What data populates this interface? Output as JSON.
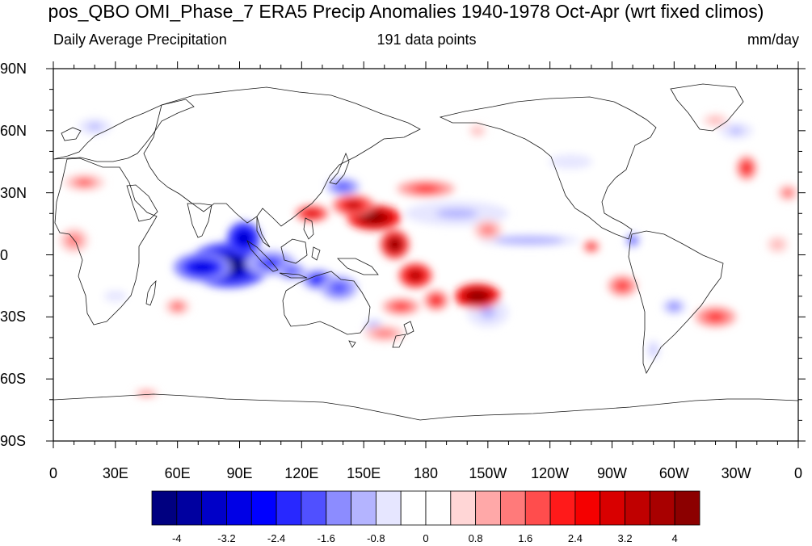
{
  "title": "pos_QBO OMI_Phase_7 ERA5 Precip Anomalies 1940-1978 Oct-Apr (wrt fixed climos)",
  "subtitle_left": "Daily Average Precipitation",
  "subtitle_center": "191 data points",
  "subtitle_right": "mm/day",
  "lat_labels": [
    "90N",
    "60N",
    "30N",
    "0",
    "30S",
    "60S",
    "90S"
  ],
  "lon_labels": [
    "0",
    "30E",
    "60E",
    "90E",
    "120E",
    "150E",
    "180",
    "150W",
    "120W",
    "90W",
    "60W",
    "30W",
    "0"
  ],
  "colorbar": {
    "colors": [
      "#000080",
      "#0000a0",
      "#0000c8",
      "#0000e6",
      "#0000ff",
      "#2828ff",
      "#5050ff",
      "#8c8cff",
      "#b4b4ff",
      "#e6e6ff",
      "#ffffff",
      "#ffffff",
      "#ffd6d6",
      "#ffa8a8",
      "#ff7a7a",
      "#ff4d4d",
      "#ff1a1a",
      "#f50000",
      "#d90000",
      "#c00000",
      "#a80000",
      "#8c0000"
    ],
    "labels": [
      "-4",
      "-3.2",
      "-2.4",
      "-1.6",
      "-0.8",
      "0",
      "0.8",
      "1.6",
      "2.4",
      "3.2",
      "4"
    ]
  },
  "anomalies": [
    {
      "lon": 85,
      "lat": -5,
      "rx": 20,
      "ry": 11,
      "value": -4.4
    },
    {
      "lon": 92,
      "lat": 8,
      "rx": 8,
      "ry": 8,
      "value": -3.6
    },
    {
      "lon": 72,
      "lat": -6,
      "rx": 14,
      "ry": 7,
      "value": -3.0
    },
    {
      "lon": 105,
      "lat": -4,
      "rx": 12,
      "ry": 6,
      "value": -2.2
    },
    {
      "lon": 128,
      "lat": -12,
      "rx": 8,
      "ry": 5,
      "value": -2.6
    },
    {
      "lon": 115,
      "lat": -8,
      "rx": 7,
      "ry": 4,
      "value": -2.0
    },
    {
      "lon": 138,
      "lat": -16,
      "rx": 9,
      "ry": 6,
      "value": -1.8
    },
    {
      "lon": 155,
      "lat": -35,
      "rx": 5,
      "ry": 4,
      "value": -1.2
    },
    {
      "lon": 140,
      "lat": 33,
      "rx": 8,
      "ry": 4,
      "value": -1.8
    },
    {
      "lon": 195,
      "lat": 20,
      "rx": 25,
      "ry": 6,
      "value": -0.9
    },
    {
      "lon": 230,
      "lat": 7,
      "rx": 24,
      "ry": 3,
      "value": -1.2
    },
    {
      "lon": 280,
      "lat": 7,
      "rx": 4,
      "ry": 4,
      "value": -1.7
    },
    {
      "lon": 300,
      "lat": -25,
      "rx": 6,
      "ry": 4,
      "value": -1.5
    },
    {
      "lon": 290,
      "lat": -46,
      "rx": 3,
      "ry": 5,
      "value": -1.0
    },
    {
      "lon": 210,
      "lat": -28,
      "rx": 10,
      "ry": 7,
      "value": -0.9
    },
    {
      "lon": 30,
      "lat": -20,
      "rx": 8,
      "ry": 4,
      "value": -0.8
    },
    {
      "lon": 20,
      "lat": 62,
      "rx": 8,
      "ry": 4,
      "value": -1.0
    },
    {
      "lon": 250,
      "lat": 45,
      "rx": 15,
      "ry": 5,
      "value": -0.8
    },
    {
      "lon": 330,
      "lat": 60,
      "rx": 8,
      "ry": 4,
      "value": -0.9
    },
    {
      "lon": 155,
      "lat": 18,
      "rx": 13,
      "ry": 6,
      "value": 4.6
    },
    {
      "lon": 145,
      "lat": 24,
      "rx": 10,
      "ry": 5,
      "value": 3.2
    },
    {
      "lon": 165,
      "lat": 5,
      "rx": 7,
      "ry": 7,
      "value": 4.0
    },
    {
      "lon": 175,
      "lat": -10,
      "rx": 8,
      "ry": 6,
      "value": 3.6
    },
    {
      "lon": 205,
      "lat": -20,
      "rx": 11,
      "ry": 6,
      "value": 4.6
    },
    {
      "lon": 185,
      "lat": -22,
      "rx": 6,
      "ry": 5,
      "value": 2.6
    },
    {
      "lon": 168,
      "lat": -25,
      "rx": 9,
      "ry": 4,
      "value": 2.0
    },
    {
      "lon": 125,
      "lat": 20,
      "rx": 8,
      "ry": 4,
      "value": 2.8
    },
    {
      "lon": 180,
      "lat": 32,
      "rx": 14,
      "ry": 4,
      "value": 2.2
    },
    {
      "lon": 160,
      "lat": -38,
      "rx": 10,
      "ry": 4,
      "value": 1.4
    },
    {
      "lon": 210,
      "lat": 12,
      "rx": 7,
      "ry": 5,
      "value": 1.4
    },
    {
      "lon": 260,
      "lat": 4,
      "rx": 4,
      "ry": 3,
      "value": 2.4
    },
    {
      "lon": 275,
      "lat": -15,
      "rx": 7,
      "ry": 5,
      "value": 2.0
    },
    {
      "lon": 320,
      "lat": -30,
      "rx": 10,
      "ry": 5,
      "value": 2.2
    },
    {
      "lon": 335,
      "lat": 42,
      "rx": 5,
      "ry": 6,
      "value": 2.6
    },
    {
      "lon": 15,
      "lat": 35,
      "rx": 10,
      "ry": 4,
      "value": 1.6
    },
    {
      "lon": 10,
      "lat": 7,
      "rx": 7,
      "ry": 6,
      "value": 1.4
    },
    {
      "lon": 60,
      "lat": -25,
      "rx": 6,
      "ry": 4,
      "value": 1.6
    },
    {
      "lon": 355,
      "lat": 30,
      "rx": 5,
      "ry": 4,
      "value": 1.6
    },
    {
      "lon": 350,
      "lat": 5,
      "rx": 5,
      "ry": 4,
      "value": 1.0
    },
    {
      "lon": 45,
      "lat": -67,
      "rx": 6,
      "ry": 2,
      "value": 1.2
    },
    {
      "lon": 205,
      "lat": 60,
      "rx": 4,
      "ry": 3,
      "value": 1.0
    },
    {
      "lon": 320,
      "lat": 65,
      "rx": 6,
      "ry": 3,
      "value": 1.0
    }
  ]
}
